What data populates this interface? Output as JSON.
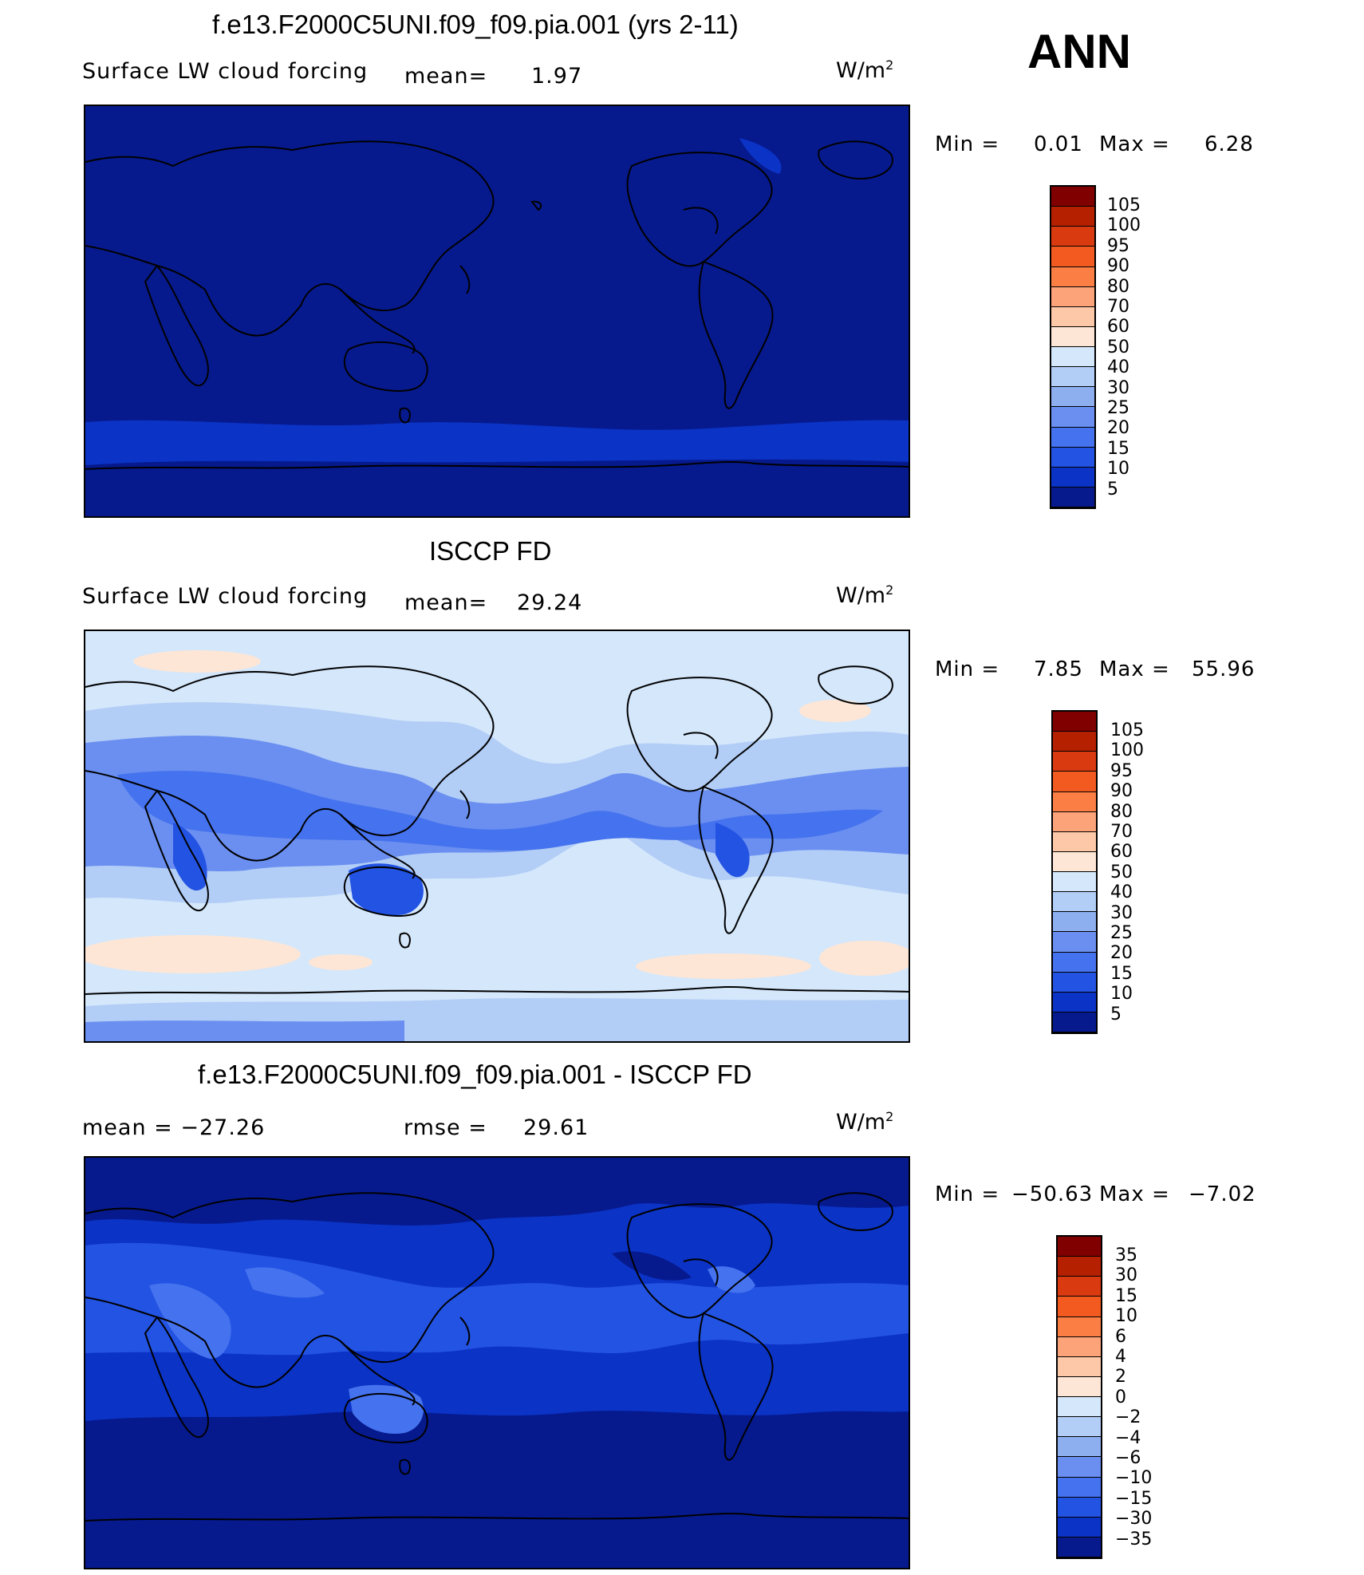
{
  "header": {
    "season": "ANN"
  },
  "panels": [
    {
      "title": "f.e13.F2000C5UNI.f09_f09.pia.001 (yrs 2-11)",
      "left_label": "Surface LW cloud forcing",
      "mid_label": "mean=",
      "mid_value": "1.97",
      "unit_base": "W/m",
      "unit_exp": "2",
      "min_text": "Min =",
      "min_value": "0.01",
      "max_text": "Max =",
      "max_value": "6.28",
      "colorbar_labels": [
        "105",
        "100",
        "95",
        "90",
        "80",
        "70",
        "60",
        "50",
        "40",
        "30",
        "25",
        "20",
        "15",
        "10",
        "5"
      ]
    },
    {
      "title": "ISCCP FD",
      "left_label": "Surface LW cloud forcing",
      "mid_label": "mean=",
      "mid_value": "29.24",
      "unit_base": "W/m",
      "unit_exp": "2",
      "min_text": "Min =",
      "min_value": "7.85",
      "max_text": "Max =",
      "max_value": "55.96",
      "colorbar_labels": [
        "105",
        "100",
        "95",
        "90",
        "80",
        "70",
        "60",
        "50",
        "40",
        "30",
        "25",
        "20",
        "15",
        "10",
        "5"
      ]
    },
    {
      "title": "f.e13.F2000C5UNI.f09_f09.pia.001 - ISCCP FD",
      "left_label": "mean = −27.26",
      "mid_label": "rmse =",
      "mid_value": "29.61",
      "unit_base": "W/m",
      "unit_exp": "2",
      "min_text": "Min =",
      "min_value": "−50.63",
      "max_text": "Max =",
      "max_value": "−7.02",
      "colorbar_labels": [
        "35",
        "30",
        "15",
        "10",
        "6",
        "4",
        "2",
        "0",
        "−2",
        "−4",
        "−6",
        "−10",
        "−15",
        "−30",
        "−35"
      ]
    }
  ],
  "colors": {
    "scale": [
      "#800000",
      "#b52000",
      "#d93a10",
      "#f25a20",
      "#fb7f45",
      "#fca37a",
      "#fdc8a8",
      "#fde6d6",
      "#d4e7fb",
      "#b2cdf6",
      "#8daff0",
      "#6a8ff0",
      "#4572ee",
      "#2353e3",
      "#0b33c6",
      "#061a8e"
    ],
    "model_ocean": "#061a8e",
    "model_band": "#0b33c6",
    "obs_base": "#d4e7fb",
    "obs_mid": "#b2cdf6",
    "obs_low": "#6a8ff0",
    "obs_lower": "#4572ee",
    "obs_lowest": "#2353e3",
    "obs_warm": "#fde6d6",
    "diff_base": "#0b33c6",
    "diff_deep": "#061a8e",
    "diff_light": "#2353e3",
    "diff_lighter": "#4572ee",
    "coast": "#000000"
  }
}
